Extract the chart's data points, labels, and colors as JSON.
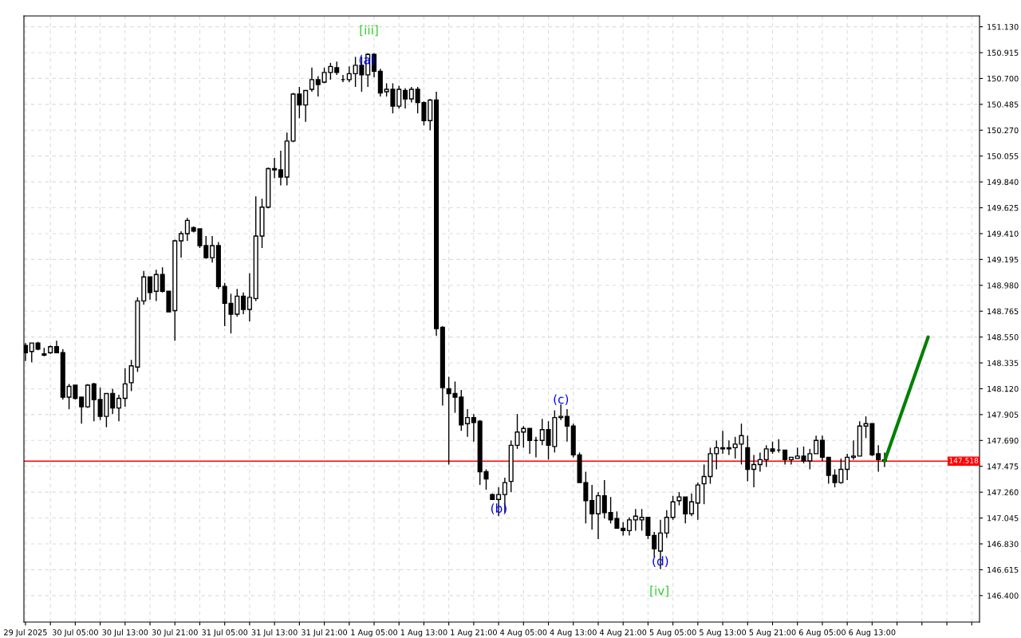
{
  "chart_data": {
    "type": "candlestick",
    "categories": [
      "29 Jul 2025",
      null,
      null,
      null,
      null,
      null,
      null,
      null,
      "30 Jul 05:00",
      null,
      null,
      null,
      null,
      null,
      null,
      null,
      "30 Jul 13:00",
      null,
      null,
      null,
      null,
      null,
      null,
      null,
      "30 Jul 21:00",
      null,
      null,
      null,
      null,
      null,
      null,
      null,
      "31 Jul 05:00",
      null,
      null,
      null,
      null,
      null,
      null,
      null,
      "31 Jul 13:00",
      null,
      null,
      null,
      null,
      null,
      null,
      null,
      "31 Jul 21:00",
      null,
      null,
      null,
      null,
      null,
      null,
      null,
      "1 Aug 05:00",
      null,
      null,
      null,
      null,
      null,
      null,
      null,
      "1 Aug 13:00",
      null,
      null,
      null,
      null,
      null,
      null,
      null,
      "1 Aug 21:00",
      null,
      null,
      null,
      null,
      null,
      null,
      null,
      "4 Aug 05:00",
      null,
      null,
      null,
      null,
      null,
      null,
      null,
      "4 Aug 13:00",
      null,
      null,
      null,
      null,
      null,
      null,
      null,
      "4 Aug 21:00",
      null,
      null,
      null,
      null,
      null,
      null,
      null,
      "5 Aug 05:00",
      null,
      null,
      null,
      null,
      null,
      null,
      null,
      "5 Aug 13:00",
      null,
      null,
      null,
      null,
      null,
      null,
      null,
      "5 Aug 21:00",
      null,
      null,
      null,
      null,
      null,
      null,
      null,
      "6 Aug 05:00",
      null,
      null,
      null,
      null,
      null,
      null,
      null,
      "6 Aug 13:00",
      null,
      null,
      null,
      null,
      null,
      null,
      null,
      null,
      null,
      null,
      null,
      null,
      null,
      null,
      null,
      null,
      null
    ],
    "ohlc": [
      [
        148.48,
        148.5,
        148.35,
        148.42
      ],
      [
        148.43,
        148.5,
        148.34,
        148.5
      ],
      [
        148.5,
        148.51,
        148.44,
        148.45
      ],
      [
        148.41,
        148.46,
        148.39,
        148.4
      ],
      [
        148.42,
        148.48,
        148.41,
        148.47
      ],
      [
        148.47,
        148.52,
        148.42,
        148.42
      ],
      [
        148.42,
        148.45,
        148.03,
        148.05
      ],
      [
        148.05,
        148.16,
        147.95,
        148.14
      ],
      [
        148.15,
        148.15,
        148.03,
        148.04
      ],
      [
        148.05,
        148.05,
        147.83,
        147.97
      ],
      [
        147.97,
        148.16,
        147.96,
        148.15
      ],
      [
        148.16,
        148.17,
        147.85,
        148.03
      ],
      [
        148.03,
        148.13,
        147.86,
        147.89
      ],
      [
        147.89,
        148.08,
        147.8,
        148.08
      ],
      [
        148.08,
        148.12,
        147.91,
        147.96
      ],
      [
        147.96,
        148.07,
        147.85,
        148.04
      ],
      [
        148.04,
        148.29,
        147.97,
        148.16
      ],
      [
        148.17,
        148.36,
        148.1,
        148.31
      ],
      [
        148.3,
        148.88,
        148.26,
        148.85
      ],
      [
        148.85,
        149.1,
        148.82,
        149.05
      ],
      [
        149.05,
        149.05,
        148.86,
        148.92
      ],
      [
        148.93,
        149.11,
        148.85,
        149.07
      ],
      [
        149.07,
        149.13,
        148.92,
        148.93
      ],
      [
        148.93,
        148.93,
        148.76,
        148.76
      ],
      [
        148.77,
        149.36,
        148.52,
        149.35
      ],
      [
        149.35,
        149.43,
        149.21,
        149.41
      ],
      [
        149.41,
        149.54,
        149.35,
        149.52
      ],
      [
        149.46,
        149.47,
        149.42,
        149.43
      ],
      [
        149.45,
        149.45,
        149.29,
        149.31
      ],
      [
        149.31,
        149.39,
        149.2,
        149.21
      ],
      [
        149.21,
        149.39,
        149.17,
        149.31
      ],
      [
        149.31,
        149.34,
        148.95,
        148.97
      ],
      [
        148.97,
        149.0,
        148.64,
        148.83
      ],
      [
        148.83,
        148.91,
        148.58,
        148.74
      ],
      [
        148.74,
        148.95,
        148.72,
        148.89
      ],
      [
        148.89,
        148.92,
        148.74,
        148.78
      ],
      [
        148.78,
        149.08,
        148.68,
        148.88
      ],
      [
        148.87,
        149.72,
        148.85,
        149.39
      ],
      [
        149.39,
        149.7,
        149.29,
        149.63
      ],
      [
        149.63,
        149.96,
        149.62,
        149.95
      ],
      [
        149.95,
        150.04,
        149.87,
        149.94
      ],
      [
        149.94,
        150.1,
        149.81,
        149.88
      ],
      [
        149.88,
        150.25,
        149.81,
        150.18
      ],
      [
        150.18,
        150.58,
        150.17,
        150.57
      ],
      [
        150.57,
        150.63,
        150.37,
        150.48
      ],
      [
        150.48,
        150.6,
        150.34,
        150.6
      ],
      [
        150.61,
        150.79,
        150.59,
        150.69
      ],
      [
        150.69,
        150.72,
        150.55,
        150.65
      ],
      [
        150.67,
        150.79,
        150.66,
        150.75
      ],
      [
        150.75,
        150.83,
        150.69,
        150.8
      ],
      [
        150.79,
        150.84,
        150.73,
        150.75
      ],
      [
        150.69,
        150.73,
        150.67,
        150.69
      ],
      [
        150.69,
        150.8,
        150.67,
        150.74
      ],
      [
        150.74,
        150.88,
        150.63,
        150.81
      ],
      [
        150.81,
        150.88,
        150.59,
        150.73
      ],
      [
        150.73,
        150.91,
        150.63,
        150.9
      ],
      [
        150.9,
        150.91,
        150.71,
        150.76
      ],
      [
        150.76,
        150.78,
        150.55,
        150.58
      ],
      [
        150.59,
        150.66,
        150.55,
        150.61
      ],
      [
        150.61,
        150.66,
        150.41,
        150.47
      ],
      [
        150.47,
        150.64,
        150.45,
        150.61
      ],
      [
        150.6,
        150.62,
        150.45,
        150.53
      ],
      [
        150.53,
        150.63,
        150.5,
        150.61
      ],
      [
        150.61,
        150.63,
        150.41,
        150.5
      ],
      [
        150.5,
        150.51,
        150.31,
        150.35
      ],
      [
        150.35,
        150.53,
        150.27,
        150.52
      ],
      [
        150.52,
        150.59,
        148.56,
        148.62
      ],
      [
        148.63,
        148.64,
        147.98,
        148.13
      ],
      [
        148.12,
        148.22,
        147.49,
        148.08
      ],
      [
        148.08,
        148.18,
        147.92,
        148.05
      ],
      [
        148.05,
        148.11,
        147.77,
        147.82
      ],
      [
        147.83,
        147.95,
        147.72,
        147.88
      ],
      [
        147.88,
        147.91,
        147.68,
        147.84
      ],
      [
        147.85,
        147.86,
        147.32,
        147.43
      ],
      [
        147.43,
        147.45,
        147.28,
        147.37
      ],
      [
        147.24,
        147.25,
        147.2,
        147.2
      ],
      [
        147.2,
        147.3,
        147.06,
        147.24
      ],
      [
        147.24,
        147.38,
        147.09,
        147.34
      ],
      [
        147.35,
        147.69,
        147.26,
        147.65
      ],
      [
        147.65,
        147.91,
        147.62,
        147.76
      ],
      [
        147.76,
        147.81,
        147.63,
        147.79
      ],
      [
        147.79,
        147.79,
        147.58,
        147.69
      ],
      [
        147.69,
        147.72,
        147.55,
        147.69
      ],
      [
        147.69,
        147.87,
        147.65,
        147.78
      ],
      [
        147.78,
        147.85,
        147.53,
        147.65
      ],
      [
        147.64,
        147.94,
        147.59,
        147.88
      ],
      [
        147.88,
        147.99,
        147.86,
        147.89
      ],
      [
        147.89,
        147.95,
        147.68,
        147.81
      ],
      [
        147.81,
        147.83,
        147.55,
        147.57
      ],
      [
        147.57,
        147.59,
        147.34,
        147.34
      ],
      [
        147.34,
        147.43,
        147.0,
        147.19
      ],
      [
        147.19,
        147.32,
        146.95,
        147.08
      ],
      [
        147.08,
        147.26,
        146.87,
        147.23
      ],
      [
        147.23,
        147.36,
        147.04,
        147.09
      ],
      [
        147.09,
        147.22,
        147.0,
        147.03
      ],
      [
        147.04,
        147.1,
        146.96,
        146.96
      ],
      [
        146.96,
        147.01,
        146.9,
        146.94
      ],
      [
        146.94,
        147.05,
        146.9,
        147.03
      ],
      [
        147.03,
        147.12,
        146.94,
        147.06
      ],
      [
        147.03,
        147.12,
        146.94,
        147.05
      ],
      [
        147.05,
        147.05,
        146.87,
        146.9
      ],
      [
        146.9,
        146.93,
        146.72,
        146.79
      ],
      [
        146.77,
        147.03,
        146.62,
        146.92
      ],
      [
        146.92,
        147.11,
        146.88,
        147.05
      ],
      [
        147.05,
        147.23,
        147.03,
        147.18
      ],
      [
        147.19,
        147.26,
        147.15,
        147.22
      ],
      [
        147.22,
        147.22,
        147.0,
        147.08
      ],
      [
        147.08,
        147.25,
        147.06,
        147.18
      ],
      [
        147.17,
        147.34,
        147.03,
        147.32
      ],
      [
        147.33,
        147.49,
        147.16,
        147.39
      ],
      [
        147.39,
        147.63,
        147.33,
        147.58
      ],
      [
        147.58,
        147.69,
        147.45,
        147.63
      ],
      [
        147.63,
        147.77,
        147.58,
        147.62
      ],
      [
        147.63,
        147.69,
        147.57,
        147.62
      ],
      [
        147.63,
        147.72,
        147.54,
        147.66
      ],
      [
        147.66,
        147.83,
        147.49,
        147.73
      ],
      [
        147.63,
        147.73,
        147.35,
        147.45
      ],
      [
        147.45,
        147.57,
        147.3,
        147.49
      ],
      [
        147.49,
        147.59,
        147.43,
        147.53
      ],
      [
        147.53,
        147.65,
        147.47,
        147.62
      ],
      [
        147.62,
        147.68,
        147.58,
        147.6
      ],
      [
        147.61,
        147.7,
        147.59,
        147.61
      ],
      [
        147.61,
        147.61,
        147.49,
        147.53
      ],
      [
        147.53,
        147.55,
        147.49,
        147.55
      ],
      [
        147.54,
        147.63,
        147.54,
        147.56
      ],
      [
        147.56,
        147.64,
        147.5,
        147.52
      ],
      [
        147.52,
        147.62,
        147.45,
        147.58
      ],
      [
        147.58,
        147.73,
        147.58,
        147.69
      ],
      [
        147.69,
        147.73,
        147.52,
        147.55
      ],
      [
        147.55,
        147.55,
        147.33,
        147.4
      ],
      [
        147.4,
        147.45,
        147.3,
        147.34
      ],
      [
        147.34,
        147.54,
        147.33,
        147.45
      ],
      [
        147.45,
        147.58,
        147.36,
        147.55
      ],
      [
        147.55,
        147.69,
        147.53,
        147.56
      ],
      [
        147.56,
        147.85,
        147.56,
        147.81
      ],
      [
        147.81,
        147.89,
        147.71,
        147.83
      ],
      [
        147.83,
        147.83,
        147.56,
        147.57
      ],
      [
        147.58,
        147.65,
        147.43,
        147.53
      ],
      [
        147.53,
        147.59,
        147.47,
        147.52
      ],
      null,
      null,
      null,
      null,
      null,
      null,
      null,
      null,
      null,
      null,
      null,
      null,
      null,
      null,
      null
    ],
    "series": [
      {
        "type": "line",
        "color": "#008000",
        "values": [
          null,
          null,
          null,
          null,
          null,
          null,
          null,
          null,
          null,
          null,
          null,
          null,
          null,
          null,
          null,
          null,
          null,
          null,
          null,
          null,
          null,
          null,
          null,
          null,
          null,
          null,
          null,
          null,
          null,
          null,
          null,
          null,
          null,
          null,
          null,
          null,
          null,
          null,
          null,
          null,
          null,
          null,
          null,
          null,
          null,
          null,
          null,
          null,
          null,
          null,
          null,
          null,
          null,
          null,
          null,
          null,
          null,
          null,
          null,
          null,
          null,
          null,
          null,
          null,
          null,
          null,
          null,
          null,
          null,
          null,
          null,
          null,
          null,
          null,
          null,
          null,
          null,
          null,
          null,
          null,
          null,
          null,
          null,
          null,
          null,
          null,
          null,
          null,
          null,
          null,
          null,
          null,
          null,
          null,
          null,
          null,
          null,
          null,
          null,
          null,
          null,
          null,
          null,
          null,
          null,
          null,
          null,
          null,
          null,
          null,
          null,
          null,
          null,
          null,
          null,
          null,
          null,
          null,
          null,
          null,
          null,
          null,
          null,
          null,
          null,
          null,
          null,
          null,
          null,
          null,
          null,
          null,
          null,
          null,
          null,
          null,
          null,
          null,
          147.518,
          null,
          null,
          null,
          null,
          null,
          null,
          148.55,
          null,
          null,
          null,
          null,
          null,
          null,
          null,
          null
        ]
      }
    ],
    "ylim": [
      146.18,
      151.22
    ],
    "yticks": [
      {
        "value": 146.4,
        "label": "146.400"
      },
      {
        "value": 146.615,
        "label": "146.615"
      },
      {
        "value": 146.83,
        "label": "146.830"
      },
      {
        "value": 147.045,
        "label": "147.045"
      },
      {
        "value": 147.26,
        "label": "147.260"
      },
      {
        "value": 147.475,
        "label": "147.475"
      },
      {
        "value": 147.69,
        "label": "147.690"
      },
      {
        "value": 147.905,
        "label": "147.905"
      },
      {
        "value": 148.12,
        "label": "148.120"
      },
      {
        "value": 148.335,
        "label": "148.335"
      },
      {
        "value": 148.55,
        "label": "148.550"
      },
      {
        "value": 148.765,
        "label": "148.765"
      },
      {
        "value": 148.98,
        "label": "148.980"
      },
      {
        "value": 149.195,
        "label": "149.195"
      },
      {
        "value": 149.41,
        "label": "149.410"
      },
      {
        "value": 149.625,
        "label": "149.625"
      },
      {
        "value": 149.84,
        "label": "149.840"
      },
      {
        "value": 150.055,
        "label": "150.055"
      },
      {
        "value": 150.27,
        "label": "150.270"
      },
      {
        "value": 150.485,
        "label": "150.485"
      },
      {
        "value": 150.7,
        "label": "150.700"
      },
      {
        "value": 150.915,
        "label": "150.915"
      },
      {
        "value": 151.13,
        "label": "151.130"
      }
    ],
    "ref_lines": [
      {
        "axis": "y",
        "value": 147.518,
        "label": "147.518",
        "color": "#ff0000"
      }
    ],
    "annotations": [
      "[iii]",
      "(a)",
      "(b)",
      "(c)",
      "(d)",
      "[iv]"
    ],
    "grid": true
  }
}
